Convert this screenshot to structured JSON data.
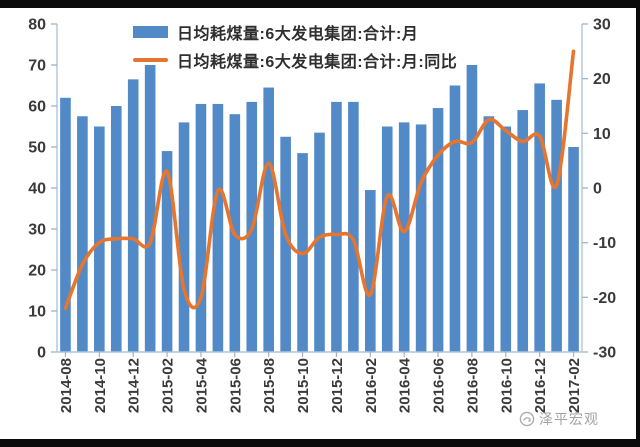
{
  "legend": {
    "items": [
      {
        "label": "日均耗煤量:6大发电集团:合计:月",
        "type": "bar",
        "color": "#5289c7"
      },
      {
        "label": "日均耗煤量:6大发电集团:合计:月:同比",
        "type": "line",
        "color": "#e6762f"
      }
    ]
  },
  "watermark": {
    "text": "泽平宏观"
  },
  "colors": {
    "bar": "#5289c7",
    "line": "#e6762f",
    "axis_line": "#aec6dc",
    "tick_mark": "#9db3c6",
    "tick_label": "#3a3a3a",
    "border": "#0b0b0b"
  },
  "chart_data": {
    "type": "bar",
    "subtype": "combo-bar-line",
    "title": "",
    "xlabel": "",
    "ylabel_left": "",
    "ylabel_right": "",
    "grid": false,
    "legend_position": "top",
    "categories": [
      "2014-08",
      "2014-09",
      "2014-10",
      "2014-11",
      "2014-12",
      "2015-01",
      "2015-02",
      "2015-03",
      "2015-04",
      "2015-05",
      "2015-06",
      "2015-07",
      "2015-08",
      "2015-09",
      "2015-10",
      "2015-11",
      "2015-12",
      "2016-01",
      "2016-02",
      "2016-03",
      "2016-04",
      "2016-05",
      "2016-06",
      "2016-07",
      "2016-08",
      "2016-09",
      "2016-10",
      "2016-11",
      "2016-12",
      "2017-01",
      "2017-02"
    ],
    "series": [
      {
        "name": "日均耗煤量:6大发电集团:合计:月",
        "type": "bar",
        "axis": "left",
        "color": "#5289c7",
        "values": [
          62,
          57.5,
          55,
          60,
          66.5,
          70,
          49,
          56,
          60.5,
          60.5,
          58,
          61,
          64.5,
          52.5,
          48.5,
          53.5,
          61,
          61,
          39.5,
          55,
          56,
          55.5,
          59.5,
          65,
          70,
          57.5,
          55,
          59,
          65.5,
          61.5,
          50
        ]
      },
      {
        "name": "日均耗煤量:6大发电集团:合计:月:同比",
        "type": "line",
        "axis": "right",
        "color": "#e6762f",
        "values": [
          -22,
          -14,
          -10,
          -9.3,
          -9.3,
          -10,
          3,
          -18.5,
          -20,
          -0.5,
          -8.5,
          -7.5,
          4.5,
          -8.5,
          -12,
          -9,
          -8.5,
          -9.5,
          -19.5,
          -1.5,
          -8,
          1,
          6,
          8.5,
          8.3,
          12.5,
          10.5,
          8.5,
          9.5,
          0.5,
          25
        ]
      }
    ],
    "left_axis": {
      "min": 0,
      "max": 80,
      "step": 10,
      "tick_labels": [
        "0",
        "10",
        "20",
        "30",
        "40",
        "50",
        "60",
        "70",
        "80"
      ]
    },
    "right_axis": {
      "min": -30,
      "max": 30,
      "step": 10,
      "tick_labels": [
        "-30",
        "-20",
        "-10",
        "0",
        "10",
        "20",
        "30"
      ]
    },
    "x_tick_labels": [
      "2014-08",
      "2014-10",
      "2014-12",
      "2015-02",
      "2015-04",
      "2015-06",
      "2015-08",
      "2015-10",
      "2015-12",
      "2016-02",
      "2016-04",
      "2016-06",
      "2016-08",
      "2016-10",
      "2016-12",
      "2017-02"
    ]
  }
}
